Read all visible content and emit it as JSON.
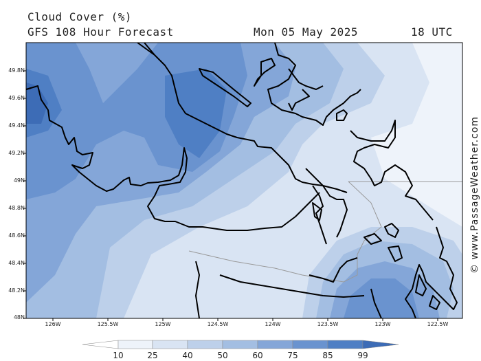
{
  "header": {
    "title": "Cloud Cover (%)",
    "subtitle": "GFS 108 Hour Forecast",
    "date": "Mon 05 May 2025",
    "time": "18 UTC"
  },
  "credit": "© www.PassageWeather.com",
  "map": {
    "lat_labels": [
      "49.8N",
      "49.6N",
      "49.4N",
      "49.2N",
      "49N",
      "48.8N",
      "48.6N",
      "48.4N",
      "48.2N",
      "48N"
    ],
    "lon_labels": [
      "126W",
      "125.5W",
      "125W",
      "124.5W",
      "124W",
      "123.5W",
      "123W",
      "122.5W"
    ],
    "region": "Vancouver Island / Strait of Georgia / Puget Sound"
  },
  "colorbar": {
    "ticks": [
      "10",
      "25",
      "40",
      "50",
      "60",
      "75",
      "85",
      "99"
    ],
    "colors": [
      "#ffffff",
      "#eef3fa",
      "#d9e4f3",
      "#bdd0ea",
      "#a3bee2",
      "#84a6d8",
      "#6a93cf",
      "#4f7fc4",
      "#3d6cb6"
    ]
  },
  "colors": {
    "coast": "#000000",
    "border": "#999999",
    "frame": "#000000"
  }
}
